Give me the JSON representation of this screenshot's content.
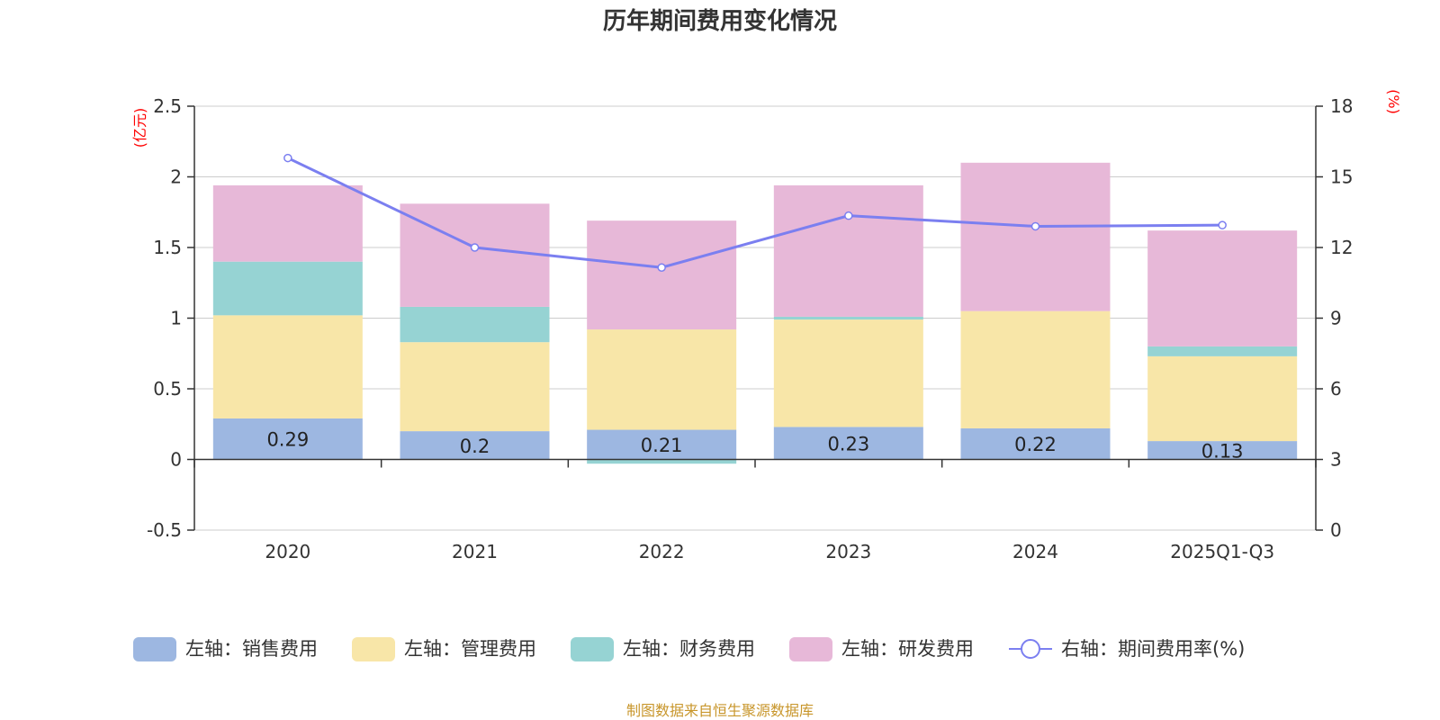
{
  "chart_data": {
    "type": "bar",
    "stacked": true,
    "title": "历年期间费用变化情况",
    "left_axis": {
      "unit": "(亿元)",
      "ylim": [
        -0.5,
        2.5
      ],
      "ticks": [
        "2.5",
        "2",
        "1.5",
        "1",
        "0.5",
        "0",
        "-0.5"
      ]
    },
    "right_axis": {
      "unit": "(%)",
      "ylim": [
        0,
        18
      ],
      "ticks": [
        "18",
        "15",
        "12",
        "9",
        "6",
        "3",
        "0"
      ]
    },
    "categories": [
      "2020",
      "2021",
      "2022",
      "2023",
      "2024",
      "2025Q1-Q3"
    ],
    "series": [
      {
        "name": "左轴：销售费用",
        "type": "bar",
        "color": "#9db7e1",
        "values": [
          0.29,
          0.2,
          0.21,
          0.23,
          0.22,
          0.13
        ],
        "labels": [
          "0.29",
          "0.2",
          "0.21",
          "0.23",
          "0.22",
          "0.13"
        ]
      },
      {
        "name": "左轴：管理费用",
        "type": "bar",
        "color": "#f8e6a8",
        "values": [
          0.73,
          0.63,
          0.71,
          0.76,
          0.83,
          0.6
        ]
      },
      {
        "name": "左轴：财务费用",
        "type": "bar",
        "color": "#96d3d3",
        "values": [
          0.38,
          0.25,
          -0.03,
          0.02,
          0.0,
          0.07
        ]
      },
      {
        "name": "左轴：研发费用",
        "type": "bar",
        "color": "#e7b8d8",
        "values": [
          0.54,
          0.73,
          0.77,
          0.93,
          1.05,
          0.82
        ]
      },
      {
        "name": "右轴：期间费用率(%)",
        "type": "line",
        "axis": "right",
        "color": "#7b7ff0",
        "values": [
          15.8,
          12.0,
          11.15,
          13.35,
          12.9,
          12.95
        ]
      }
    ],
    "legend_position": "bottom",
    "source": "制图数据来自恒生聚源数据库"
  }
}
